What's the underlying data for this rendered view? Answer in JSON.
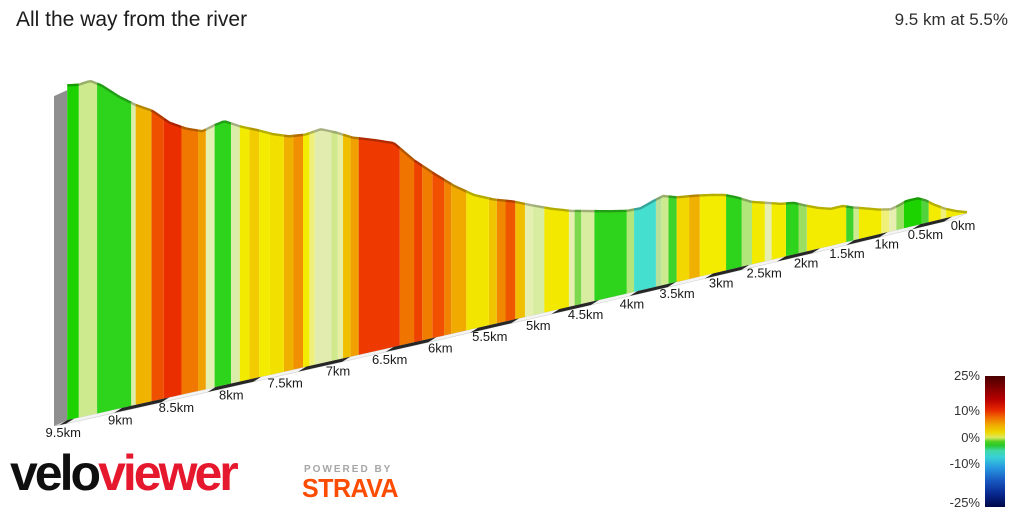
{
  "header": {
    "title": "All the way from the river",
    "summary": "9.5 km at 5.5%"
  },
  "chart_data": {
    "type": "area",
    "title": "All the way from the river",
    "summary_label": "9.5 km at 5.5%",
    "distance_km": 9.5,
    "avg_gradient_pct": 5.5,
    "x_axis": {
      "unit": "km",
      "tick_step_km": 0.5,
      "direction": "distance increases right-to-left",
      "labels": [
        "0km",
        "0.5km",
        "1km",
        "1.5km",
        "2km",
        "2.5km",
        "3km",
        "3.5km",
        "4km",
        "4.5km",
        "5km",
        "5.5km",
        "6km",
        "6.5km",
        "7km",
        "7.5km",
        "8km",
        "8.5km",
        "9km",
        "9.5km"
      ]
    },
    "profile_km_elev_m": [
      [
        0,
        0
      ],
      [
        0.15,
        6
      ],
      [
        0.3,
        14
      ],
      [
        0.45,
        25
      ],
      [
        0.55,
        34
      ],
      [
        0.65,
        40
      ],
      [
        0.8,
        40
      ],
      [
        0.9,
        36
      ],
      [
        1,
        33
      ],
      [
        1.15,
        37
      ],
      [
        1.3,
        43
      ],
      [
        1.5,
        51
      ],
      [
        1.6,
        56
      ],
      [
        1.75,
        56
      ],
      [
        1.9,
        62
      ],
      [
        2.05,
        70
      ],
      [
        2.2,
        79
      ],
      [
        2.35,
        82
      ],
      [
        2.5,
        88
      ],
      [
        2.7,
        96
      ],
      [
        2.85,
        107
      ],
      [
        3,
        116
      ],
      [
        3.15,
        121
      ],
      [
        3.35,
        126
      ],
      [
        3.55,
        130
      ],
      [
        3.7,
        137
      ],
      [
        3.8,
        133
      ],
      [
        3.95,
        126
      ],
      [
        4.1,
        127
      ],
      [
        4.3,
        133
      ],
      [
        4.5,
        140
      ],
      [
        4.7,
        147
      ],
      [
        4.9,
        157
      ],
      [
        5.1,
        169
      ],
      [
        5.3,
        182
      ],
      [
        5.5,
        192
      ],
      [
        5.7,
        206
      ],
      [
        5.9,
        227
      ],
      [
        6.1,
        253
      ],
      [
        6.3,
        281
      ],
      [
        6.5,
        315
      ],
      [
        6.7,
        327
      ],
      [
        6.9,
        338
      ],
      [
        7.05,
        351
      ],
      [
        7.2,
        362
      ],
      [
        7.35,
        359
      ],
      [
        7.5,
        362
      ],
      [
        7.65,
        371
      ],
      [
        7.8,
        383
      ],
      [
        7.95,
        394
      ],
      [
        8.1,
        408
      ],
      [
        8.2,
        405
      ],
      [
        8.3,
        400
      ],
      [
        8.45,
        410
      ],
      [
        8.6,
        425
      ],
      [
        8.75,
        449
      ],
      [
        8.9,
        464
      ],
      [
        9.05,
        483
      ],
      [
        9.2,
        506
      ],
      [
        9.3,
        517
      ],
      [
        9.4,
        515
      ],
      [
        9.5,
        518
      ]
    ],
    "gradient_stripes": [
      [
        0.0,
        0.28,
        "#f4ec00"
      ],
      [
        0.28,
        0.35,
        "#eef07a"
      ],
      [
        0.35,
        0.51,
        "#f4ec00"
      ],
      [
        0.51,
        0.6,
        "#52d23c"
      ],
      [
        0.6,
        0.83,
        "#1cd300"
      ],
      [
        0.83,
        0.93,
        "#9ade64"
      ],
      [
        0.93,
        1.02,
        "#e6efb0"
      ],
      [
        1.02,
        1.12,
        "#eef07a"
      ],
      [
        1.12,
        1.4,
        "#f4ec00"
      ],
      [
        1.4,
        1.47,
        "#cdeb8e"
      ],
      [
        1.47,
        1.56,
        "#3ed32a"
      ],
      [
        1.56,
        2.04,
        "#f4ec00"
      ],
      [
        2.04,
        2.14,
        "#9ade64"
      ],
      [
        2.14,
        2.29,
        "#2ed41c"
      ],
      [
        2.29,
        2.46,
        "#f4ec00"
      ],
      [
        2.46,
        2.54,
        "#e6efb0"
      ],
      [
        2.54,
        2.69,
        "#f2ea00"
      ],
      [
        2.69,
        2.81,
        "#b2e57a"
      ],
      [
        2.81,
        2.99,
        "#2ed41c"
      ],
      [
        2.99,
        3.29,
        "#f4ec00"
      ],
      [
        3.29,
        3.41,
        "#f0b000"
      ],
      [
        3.41,
        3.55,
        "#f2d800"
      ],
      [
        3.55,
        3.64,
        "#3ed32a"
      ],
      [
        3.64,
        3.72,
        "#cdeb8e"
      ],
      [
        3.72,
        3.78,
        "#b8e09a"
      ],
      [
        3.78,
        4.02,
        "#45dfd0"
      ],
      [
        4.02,
        4.1,
        "#b2e57a"
      ],
      [
        4.1,
        4.45,
        "#2ed41c"
      ],
      [
        4.45,
        4.59,
        "#d8eda0"
      ],
      [
        4.59,
        4.66,
        "#7cd84c"
      ],
      [
        4.66,
        4.72,
        "#e6efb0"
      ],
      [
        4.72,
        4.98,
        "#f2e800"
      ],
      [
        4.98,
        5.1,
        "#d8eda0"
      ],
      [
        5.1,
        5.18,
        "#e6efb0"
      ],
      [
        5.18,
        5.28,
        "#f0c000"
      ],
      [
        5.28,
        5.38,
        "#ef5600"
      ],
      [
        5.38,
        5.47,
        "#f08800"
      ],
      [
        5.47,
        5.55,
        "#f0c400"
      ],
      [
        5.55,
        5.78,
        "#f2e600"
      ],
      [
        5.78,
        5.93,
        "#f0aa00"
      ],
      [
        5.93,
        6.0,
        "#f08400"
      ],
      [
        6.0,
        6.12,
        "#f05000"
      ],
      [
        6.12,
        6.22,
        "#f07c00"
      ],
      [
        6.22,
        6.3,
        "#ee4200"
      ],
      [
        6.3,
        6.44,
        "#f07400"
      ],
      [
        6.44,
        6.84,
        "#ee3a00"
      ],
      [
        6.84,
        6.92,
        "#f0a000"
      ],
      [
        6.92,
        6.99,
        "#f0c000"
      ],
      [
        6.99,
        7.04,
        "#e8efa2"
      ],
      [
        7.04,
        7.1,
        "#cfe98c"
      ],
      [
        7.1,
        7.26,
        "#e2ecae"
      ],
      [
        7.26,
        7.31,
        "#eef07a"
      ],
      [
        7.31,
        7.37,
        "#f4ec00"
      ],
      [
        7.37,
        7.46,
        "#f09000"
      ],
      [
        7.46,
        7.55,
        "#f0b000"
      ],
      [
        7.55,
        7.68,
        "#f2e000"
      ],
      [
        7.68,
        7.78,
        "#f4ec00"
      ],
      [
        7.78,
        7.87,
        "#f0cc00"
      ],
      [
        7.87,
        7.96,
        "#f2ea00"
      ],
      [
        7.96,
        8.04,
        "#dcedaa"
      ],
      [
        8.04,
        8.19,
        "#2ed41c"
      ],
      [
        8.19,
        8.27,
        "#e4efb2"
      ],
      [
        8.27,
        8.34,
        "#f0a000"
      ],
      [
        8.34,
        8.49,
        "#f07800"
      ],
      [
        8.49,
        8.65,
        "#ea2e00"
      ],
      [
        8.65,
        8.76,
        "#ef5000"
      ],
      [
        8.76,
        8.9,
        "#f0b400"
      ],
      [
        8.9,
        8.94,
        "#dcedaa"
      ],
      [
        8.94,
        9.24,
        "#2ed41c"
      ],
      [
        9.24,
        9.4,
        "#cdeb8e"
      ],
      [
        9.4,
        9.5,
        "#1cd300"
      ]
    ],
    "legend": {
      "ticks": [
        {
          "label": "25%",
          "pos": 0.0
        },
        {
          "label": "10%",
          "pos": 0.27
        },
        {
          "label": "0%",
          "pos": 0.47
        },
        {
          "label": "-10%",
          "pos": 0.67
        },
        {
          "label": "-25%",
          "pos": 0.97
        }
      ],
      "gradient_stops": [
        [
          0,
          "#4a0000"
        ],
        [
          0.08,
          "#7a0000"
        ],
        [
          0.18,
          "#b80000"
        ],
        [
          0.26,
          "#e62800"
        ],
        [
          0.32,
          "#f07000"
        ],
        [
          0.38,
          "#f0b000"
        ],
        [
          0.43,
          "#ecd800"
        ],
        [
          0.47,
          "#dce860"
        ],
        [
          0.5,
          "#50d020"
        ],
        [
          0.53,
          "#28c82c"
        ],
        [
          0.57,
          "#40d8a8"
        ],
        [
          0.62,
          "#38d0d8"
        ],
        [
          0.7,
          "#2898e0"
        ],
        [
          0.8,
          "#1858c0"
        ],
        [
          0.9,
          "#082890"
        ],
        [
          1,
          "#000848"
        ]
      ]
    }
  },
  "branding": {
    "logo_black": "velo",
    "logo_red": "viewer",
    "powered_by": "POWERED BY",
    "strava": "STRAVA",
    "strava_color": "#fc4c02",
    "logo_red_color": "#e6182e"
  }
}
